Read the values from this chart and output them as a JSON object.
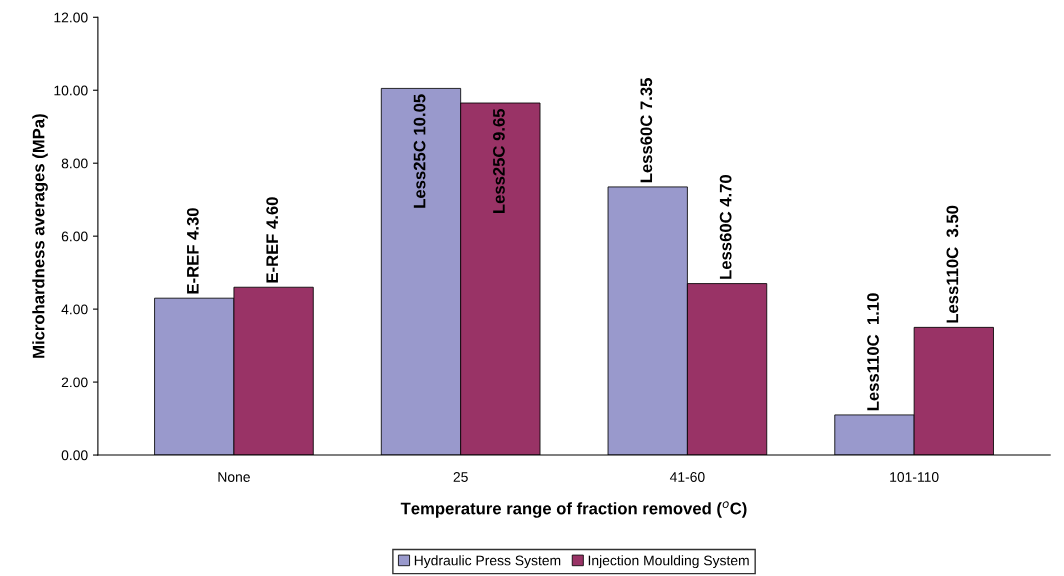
{
  "chart_data": {
    "type": "bar",
    "xlabel": "Temperature range of fraction removed ($^{o}$C)",
    "ylabel": "Microhardness averages (MPa)",
    "categories": [
      "None",
      "25",
      "41-60",
      "101-110"
    ],
    "series": [
      {
        "name": "Hydraulic Press System",
        "color": "#9999cc",
        "values": [
          4.3,
          10.05,
          7.35,
          1.1
        ],
        "value_labels": [
          "E-REF 4.30",
          "Less25C 10.05",
          "Less60C 7.35",
          "Less110C  1.10"
        ]
      },
      {
        "name": "Injection Moulding System",
        "color": "#993366",
        "values": [
          4.6,
          9.65,
          4.7,
          3.5
        ],
        "value_labels": [
          "E-REF 4.60",
          "Less25C 9.65",
          "Less60C 4.70",
          "Less110C  3.50"
        ]
      }
    ],
    "ylim": [
      0,
      12
    ],
    "yticks": [
      {
        "value": 0,
        "label": "0.00"
      },
      {
        "value": 2,
        "label": "2.00"
      },
      {
        "value": 4,
        "label": "4.00"
      },
      {
        "value": 6,
        "label": "6.00"
      },
      {
        "value": 8,
        "label": "8.00"
      },
      {
        "value": 10,
        "label": "10.00"
      },
      {
        "value": 12,
        "label": "12.00"
      }
    ],
    "legend": "bottom",
    "grid": false
  }
}
